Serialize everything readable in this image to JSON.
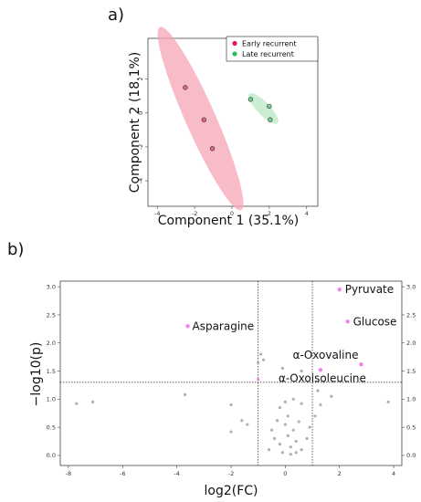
{
  "panels": {
    "a_label": "a)",
    "b_label": "b)"
  },
  "chart_data": [
    {
      "type": "scatter",
      "title": "",
      "xlabel": "Component 1 (35.1%)",
      "ylabel": "Component 2 (18.1%)",
      "xlim": [
        -4.5,
        4.6
      ],
      "ylim": [
        -5.5,
        4.4
      ],
      "xticks": [
        "-4",
        "-2",
        "0",
        "2",
        "4"
      ],
      "yticks": [
        "-4",
        "-2",
        "0",
        "2"
      ],
      "legend": {
        "position": "top-right"
      },
      "series": [
        {
          "name": "Early recurrent",
          "color": "#e8174a",
          "ellipse_color": "#f4a5b5",
          "x": [
            -2.5,
            -1.5,
            -1.05
          ],
          "y": [
            1.5,
            -0.4,
            -2.1
          ]
        },
        {
          "name": "Late recurrent",
          "color": "#2ebd5a",
          "ellipse_color": "#b9e8c4",
          "x": [
            1.0,
            2.0,
            2.05
          ],
          "y": [
            0.8,
            0.4,
            -0.4
          ]
        }
      ]
    },
    {
      "type": "scatter",
      "title": "",
      "xlabel": "log2(FC)",
      "ylabel": "−log10(p)",
      "xlim": [
        -8.3,
        4.3
      ],
      "ylim": [
        -0.18,
        3.1
      ],
      "xticks": [
        "-8",
        "-6",
        "-4",
        "-2",
        "0",
        "2",
        "4"
      ],
      "yticks": [
        "0.0",
        "0.5",
        "1.0",
        "1.5",
        "2.0",
        "2.5",
        "3.0"
      ],
      "thresholds": {
        "fc_low": -1,
        "fc_high": 1,
        "p": 1.3
      },
      "significant_color": "#ee82ee",
      "nonsignificant_color": "#b0b0b0",
      "labeled_points": [
        {
          "name": "Pyruvate",
          "x": 2.0,
          "y": 2.95
        },
        {
          "name": "Glucose",
          "x": 2.3,
          "y": 2.38
        },
        {
          "name": "Asparagine",
          "x": -3.6,
          "y": 2.3
        },
        {
          "name": "α-Oxovaline",
          "x": 2.8,
          "y": 1.62
        },
        {
          "name": "α-Oxoisoleucine",
          "x": 1.3,
          "y": 1.52
        }
      ],
      "points": [
        {
          "x": -1.0,
          "y": 1.35,
          "sig": true
        },
        {
          "x": -7.7,
          "y": 0.92,
          "sig": false
        },
        {
          "x": -7.1,
          "y": 0.95,
          "sig": false
        },
        {
          "x": -3.7,
          "y": 1.08,
          "sig": false
        },
        {
          "x": -2.0,
          "y": 0.9,
          "sig": false
        },
        {
          "x": -2.0,
          "y": 0.42,
          "sig": false
        },
        {
          "x": -1.6,
          "y": 0.62,
          "sig": false
        },
        {
          "x": -1.4,
          "y": 0.55,
          "sig": false
        },
        {
          "x": -1.0,
          "y": 1.65,
          "sig": false
        },
        {
          "x": -0.9,
          "y": 1.8,
          "sig": false
        },
        {
          "x": -0.8,
          "y": 1.7,
          "sig": false
        },
        {
          "x": -0.3,
          "y": 0.62,
          "sig": false
        },
        {
          "x": -0.5,
          "y": 0.45,
          "sig": false
        },
        {
          "x": -0.4,
          "y": 0.3,
          "sig": false
        },
        {
          "x": -0.2,
          "y": 0.2,
          "sig": false
        },
        {
          "x": 0.0,
          "y": 0.55,
          "sig": false
        },
        {
          "x": 0.1,
          "y": 0.35,
          "sig": false
        },
        {
          "x": 0.2,
          "y": 0.15,
          "sig": false
        },
        {
          "x": 0.3,
          "y": 0.45,
          "sig": false
        },
        {
          "x": 0.4,
          "y": 0.25,
          "sig": false
        },
        {
          "x": 0.5,
          "y": 0.6,
          "sig": false
        },
        {
          "x": 0.6,
          "y": 0.1,
          "sig": false
        },
        {
          "x": -0.1,
          "y": 0.05,
          "sig": false
        },
        {
          "x": 0.2,
          "y": 0.02,
          "sig": false
        },
        {
          "x": 0.8,
          "y": 0.3,
          "sig": false
        },
        {
          "x": 0.9,
          "y": 0.5,
          "sig": false
        },
        {
          "x": 0.6,
          "y": 0.92,
          "sig": false
        },
        {
          "x": 0.3,
          "y": 1.0,
          "sig": false
        },
        {
          "x": 0.0,
          "y": 0.95,
          "sig": false
        },
        {
          "x": -0.2,
          "y": 0.85,
          "sig": false
        },
        {
          "x": -0.1,
          "y": 1.55,
          "sig": false
        },
        {
          "x": 0.6,
          "y": 1.5,
          "sig": false
        },
        {
          "x": 1.2,
          "y": 1.15,
          "sig": false
        },
        {
          "x": 1.3,
          "y": 0.9,
          "sig": false
        },
        {
          "x": 1.1,
          "y": 0.7,
          "sig": false
        },
        {
          "x": 1.7,
          "y": 1.05,
          "sig": false
        },
        {
          "x": 3.8,
          "y": 0.95,
          "sig": false
        },
        {
          "x": -0.6,
          "y": 0.1,
          "sig": false
        },
        {
          "x": 0.1,
          "y": 0.7,
          "sig": false
        },
        {
          "x": 0.4,
          "y": 0.05,
          "sig": false
        }
      ]
    }
  ]
}
